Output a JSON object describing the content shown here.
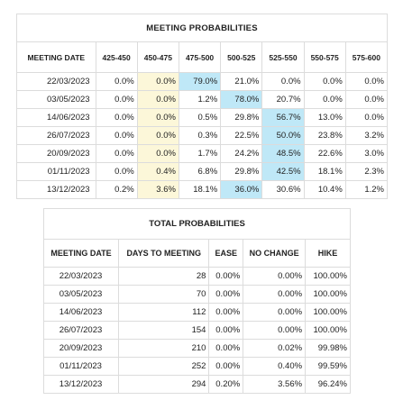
{
  "meeting_probabilities": {
    "title": "MEETING PROBABILITIES",
    "headers": [
      "MEETING DATE",
      "425-450",
      "450-475",
      "475-500",
      "500-525",
      "525-550",
      "550-575",
      "575-600"
    ],
    "rows": [
      {
        "date": "22/03/2023",
        "values": [
          "0.0%",
          "0.0%",
          "79.0%",
          "21.0%",
          "0.0%",
          "0.0%",
          "0.0%"
        ],
        "hl": [
          "",
          "y",
          "b",
          "",
          "",
          "",
          ""
        ]
      },
      {
        "date": "03/05/2023",
        "values": [
          "0.0%",
          "0.0%",
          "1.2%",
          "78.0%",
          "20.7%",
          "0.0%",
          "0.0%"
        ],
        "hl": [
          "",
          "y",
          "",
          "b",
          "",
          "",
          ""
        ]
      },
      {
        "date": "14/06/2023",
        "values": [
          "0.0%",
          "0.0%",
          "0.5%",
          "29.8%",
          "56.7%",
          "13.0%",
          "0.0%"
        ],
        "hl": [
          "",
          "y",
          "",
          "",
          "b",
          "",
          ""
        ]
      },
      {
        "date": "26/07/2023",
        "values": [
          "0.0%",
          "0.0%",
          "0.3%",
          "22.5%",
          "50.0%",
          "23.8%",
          "3.2%"
        ],
        "hl": [
          "",
          "y",
          "",
          "",
          "b",
          "",
          ""
        ]
      },
      {
        "date": "20/09/2023",
        "values": [
          "0.0%",
          "0.0%",
          "1.7%",
          "24.2%",
          "48.5%",
          "22.6%",
          "3.0%"
        ],
        "hl": [
          "",
          "y",
          "",
          "",
          "b",
          "",
          ""
        ]
      },
      {
        "date": "01/11/2023",
        "values": [
          "0.0%",
          "0.4%",
          "6.8%",
          "29.8%",
          "42.5%",
          "18.1%",
          "2.3%"
        ],
        "hl": [
          "",
          "y",
          "",
          "",
          "b",
          "",
          ""
        ]
      },
      {
        "date": "13/12/2023",
        "values": [
          "0.2%",
          "3.6%",
          "18.1%",
          "36.0%",
          "30.6%",
          "10.4%",
          "1.2%"
        ],
        "hl": [
          "",
          "y",
          "",
          "b",
          "",
          "",
          ""
        ]
      }
    ]
  },
  "total_probabilities": {
    "title": "TOTAL PROBABILITIES",
    "headers": [
      "MEETING DATE",
      "DAYS TO MEETING",
      "EASE",
      "NO CHANGE",
      "HIKE"
    ],
    "rows": [
      {
        "date": "22/03/2023",
        "days": "28",
        "ease": "0.00%",
        "no_change": "0.00%",
        "hike": "100.00%"
      },
      {
        "date": "03/05/2023",
        "days": "70",
        "ease": "0.00%",
        "no_change": "0.00%",
        "hike": "100.00%"
      },
      {
        "date": "14/06/2023",
        "days": "112",
        "ease": "0.00%",
        "no_change": "0.00%",
        "hike": "100.00%"
      },
      {
        "date": "26/07/2023",
        "days": "154",
        "ease": "0.00%",
        "no_change": "0.00%",
        "hike": "100.00%"
      },
      {
        "date": "20/09/2023",
        "days": "210",
        "ease": "0.00%",
        "no_change": "0.02%",
        "hike": "99.98%"
      },
      {
        "date": "01/11/2023",
        "days": "252",
        "ease": "0.00%",
        "no_change": "0.40%",
        "hike": "99.59%"
      },
      {
        "date": "13/12/2023",
        "days": "294",
        "ease": "0.20%",
        "no_change": "3.56%",
        "hike": "96.24%"
      }
    ]
  },
  "colors": {
    "current_rate_highlight": "#fcf7d9",
    "max_probability_highlight": "#bfe8f7"
  }
}
